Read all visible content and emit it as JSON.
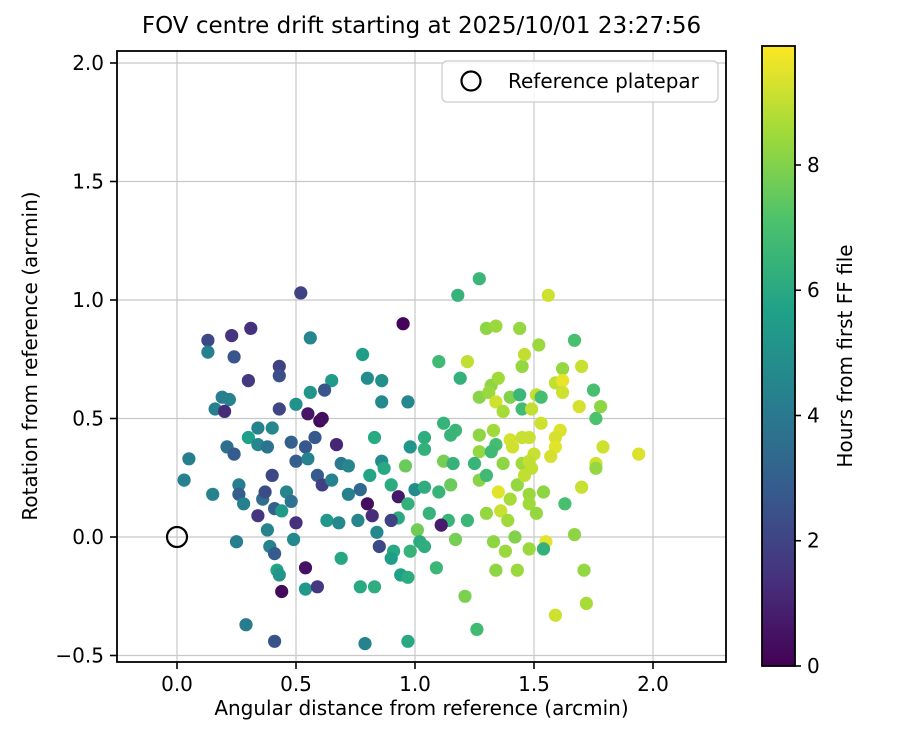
{
  "figure": {
    "title": "FOV centre drift starting at 2025/10/01 23:27:56",
    "background_color": "#ffffff",
    "grid_color": "#c8c8c8",
    "spine_color": "#000000"
  },
  "legend": {
    "label": "Reference platepar",
    "marker": "open-circle",
    "position": "upper right"
  },
  "chart_data": {
    "type": "scatter",
    "title": "FOV centre drift starting at 2025/10/01 23:27:56",
    "xlabel": "Angular distance from reference (arcmin)",
    "ylabel": "Rotation from reference (arcmin)",
    "xlim": [
      -0.252,
      2.307
    ],
    "ylim": [
      -0.527,
      2.051
    ],
    "grid": true,
    "xticks": [
      0.0,
      0.5,
      1.0,
      1.5,
      2.0
    ],
    "xtick_labels": [
      "0.0",
      "0.5",
      "1.0",
      "1.5",
      "2.0"
    ],
    "yticks": [
      -0.5,
      0.0,
      0.5,
      1.0,
      1.5,
      2.0
    ],
    "ytick_labels": [
      "−0.5",
      "0.0",
      "0.5",
      "1.0",
      "1.5",
      "2.0"
    ],
    "colorbar": {
      "label": "Hours from first FF file",
      "ticks": [
        0,
        2,
        4,
        6,
        8
      ],
      "tick_labels": [
        "0",
        "2",
        "4",
        "6",
        "8"
      ],
      "vmin": 0,
      "vmax": 9.9,
      "colormap": "viridis"
    },
    "reference_point": {
      "x": 0.0,
      "y": 0.0,
      "label": "Reference platepar"
    },
    "points_format": [
      "x_arcmin",
      "y_arcmin",
      "hours_from_first_ff"
    ],
    "points": [
      [
        0.52,
        1.03,
        2.0
      ],
      [
        0.31,
        0.88,
        1.4
      ],
      [
        0.23,
        0.85,
        1.5
      ],
      [
        0.13,
        0.83,
        2.2
      ],
      [
        0.13,
        0.78,
        4.3
      ],
      [
        0.24,
        0.76,
        2.6
      ],
      [
        0.43,
        0.72,
        2.0
      ],
      [
        0.43,
        0.68,
        2.4
      ],
      [
        0.3,
        0.66,
        1.6
      ],
      [
        0.56,
        0.84,
        4.5
      ],
      [
        0.19,
        0.59,
        4.2
      ],
      [
        0.22,
        0.58,
        4.4
      ],
      [
        0.16,
        0.54,
        4.3
      ],
      [
        0.2,
        0.53,
        1.2
      ],
      [
        0.43,
        0.54,
        2.1
      ],
      [
        0.5,
        0.56,
        5.0
      ],
      [
        0.55,
        0.52,
        0.6
      ],
      [
        0.6,
        0.49,
        0.2
      ],
      [
        0.56,
        0.61,
        5.2
      ],
      [
        0.34,
        0.46,
        4.4
      ],
      [
        0.4,
        0.46,
        4.6
      ],
      [
        0.3,
        0.42,
        5.6
      ],
      [
        0.34,
        0.39,
        4.5
      ],
      [
        0.21,
        0.38,
        3.6
      ],
      [
        0.24,
        0.35,
        2.8
      ],
      [
        0.05,
        0.33,
        4.2
      ],
      [
        0.38,
        0.38,
        3.8
      ],
      [
        0.48,
        0.4,
        3.0
      ],
      [
        0.54,
        0.38,
        2.7
      ],
      [
        0.5,
        0.32,
        2.9
      ],
      [
        0.55,
        0.33,
        4.4
      ],
      [
        1.27,
        1.09,
        6.6
      ],
      [
        1.18,
        1.02,
        6.4
      ],
      [
        0.95,
        0.9,
        0.1
      ],
      [
        1.3,
        0.88,
        8.2
      ],
      [
        1.34,
        0.89,
        8.4
      ],
      [
        1.44,
        0.88,
        8.3
      ],
      [
        0.78,
        0.77,
        5.5
      ],
      [
        1.1,
        0.74,
        6.7
      ],
      [
        1.22,
        0.74,
        9.0
      ],
      [
        1.19,
        0.67,
        6.3
      ],
      [
        1.45,
        0.72,
        8.3
      ],
      [
        0.8,
        0.67,
        4.8
      ],
      [
        0.86,
        0.66,
        4.9
      ],
      [
        0.65,
        0.66,
        5.4
      ],
      [
        0.62,
        0.62,
        2.6
      ],
      [
        0.86,
        0.57,
        4.7
      ],
      [
        0.97,
        0.57,
        4.6
      ],
      [
        1.32,
        0.64,
        8.2
      ],
      [
        1.35,
        0.67,
        8.5
      ],
      [
        1.27,
        0.59,
        8.1
      ],
      [
        1.31,
        0.61,
        8.4
      ],
      [
        1.34,
        0.57,
        9.2
      ],
      [
        1.4,
        0.59,
        8.0
      ],
      [
        1.44,
        0.6,
        6.6
      ],
      [
        1.37,
        0.53,
        8.6
      ],
      [
        1.45,
        0.54,
        6.8
      ],
      [
        0.61,
        0.5,
        0.4
      ],
      [
        1.12,
        0.48,
        6.4
      ],
      [
        1.17,
        0.45,
        6.6
      ],
      [
        1.04,
        0.42,
        6.2
      ],
      [
        1.27,
        0.43,
        8.2
      ],
      [
        1.33,
        0.45,
        8.5
      ],
      [
        1.4,
        0.41,
        9.3
      ],
      [
        1.34,
        0.39,
        6.9
      ],
      [
        1.45,
        0.42,
        9.1
      ],
      [
        0.58,
        0.42,
        2.7
      ],
      [
        0.67,
        0.39,
        1.1
      ],
      [
        0.83,
        0.42,
        6.0
      ],
      [
        0.98,
        0.38,
        5.2
      ],
      [
        1.04,
        0.37,
        6.3
      ],
      [
        1.15,
        0.43,
        6.5
      ],
      [
        1.27,
        0.36,
        8.3
      ],
      [
        1.32,
        0.36,
        6.7
      ],
      [
        1.41,
        0.38,
        9.2
      ],
      [
        1.45,
        0.31,
        8.5
      ],
      [
        1.12,
        0.32,
        7.8
      ],
      [
        1.16,
        0.31,
        6.4
      ],
      [
        0.86,
        0.32,
        4.8
      ],
      [
        0.87,
        0.29,
        6.0
      ],
      [
        0.69,
        0.31,
        4.0
      ],
      [
        0.72,
        0.3,
        4.5
      ],
      [
        0.96,
        0.3,
        7.6
      ],
      [
        1.25,
        0.31,
        6.5
      ],
      [
        1.37,
        0.31,
        8.2
      ],
      [
        1.56,
        1.02,
        9.2
      ],
      [
        1.67,
        0.83,
        7.0
      ],
      [
        1.52,
        0.81,
        8.4
      ],
      [
        1.46,
        0.77,
        9.0
      ],
      [
        1.62,
        0.71,
        8.3
      ],
      [
        1.7,
        0.72,
        9.1
      ],
      [
        1.59,
        0.65,
        9.0
      ],
      [
        1.62,
        0.66,
        9.6
      ],
      [
        1.62,
        0.61,
        9.2
      ],
      [
        1.75,
        0.62,
        7.0
      ],
      [
        1.51,
        0.6,
        9.0
      ],
      [
        1.53,
        0.59,
        6.9
      ],
      [
        1.69,
        0.55,
        9.3
      ],
      [
        1.49,
        0.54,
        9.0
      ],
      [
        1.78,
        0.55,
        8.2
      ],
      [
        1.76,
        0.5,
        7.1
      ],
      [
        1.53,
        0.48,
        9.2
      ],
      [
        1.61,
        0.45,
        9.4
      ],
      [
        1.48,
        0.42,
        9.1
      ],
      [
        1.59,
        0.42,
        9.3
      ],
      [
        1.59,
        0.38,
        9.5
      ],
      [
        1.79,
        0.38,
        9.2
      ],
      [
        1.94,
        0.35,
        9.4
      ],
      [
        1.5,
        0.35,
        9.1
      ],
      [
        1.57,
        0.34,
        9.3
      ],
      [
        1.76,
        0.31,
        9.2
      ],
      [
        1.48,
        0.32,
        9.0
      ],
      [
        0.03,
        0.24,
        4.3
      ],
      [
        0.15,
        0.18,
        4.4
      ],
      [
        0.26,
        0.22,
        4.2
      ],
      [
        0.4,
        0.26,
        2.2
      ],
      [
        0.26,
        0.18,
        2.9
      ],
      [
        0.28,
        0.14,
        4.3
      ],
      [
        0.36,
        0.16,
        3.5
      ],
      [
        0.37,
        0.19,
        2.3
      ],
      [
        0.41,
        0.12,
        3.0
      ],
      [
        0.44,
        0.11,
        5.4
      ],
      [
        0.46,
        0.19,
        4.5
      ],
      [
        0.48,
        0.15,
        3.7
      ],
      [
        0.34,
        0.09,
        1.5
      ],
      [
        0.5,
        0.06,
        1.4
      ],
      [
        0.38,
        0.03,
        4.4
      ],
      [
        0.49,
        -0.01,
        4.6
      ],
      [
        0.25,
        -0.02,
        4.2
      ],
      [
        0.39,
        -0.04,
        4.4
      ],
      [
        0.41,
        -0.07,
        2.8
      ],
      [
        0.42,
        -0.14,
        5.8
      ],
      [
        0.43,
        -0.16,
        5.1
      ],
      [
        0.44,
        -0.23,
        0.3
      ],
      [
        0.54,
        -0.13,
        0.5
      ],
      [
        0.54,
        -0.22,
        5.3
      ],
      [
        0.29,
        -0.37,
        4.1
      ],
      [
        0.41,
        -0.44,
        2.5
      ],
      [
        0.59,
        0.26,
        2.8
      ],
      [
        0.61,
        0.22,
        1.9
      ],
      [
        0.65,
        0.24,
        4.4
      ],
      [
        0.72,
        0.18,
        4.3
      ],
      [
        0.77,
        0.2,
        3.3
      ],
      [
        0.8,
        0.14,
        0.4
      ],
      [
        0.82,
        0.09,
        1.3
      ],
      [
        0.76,
        0.07,
        4.5
      ],
      [
        0.93,
        0.17,
        0.7
      ],
      [
        0.9,
        0.22,
        6.1
      ],
      [
        0.84,
        0.02,
        4.6
      ],
      [
        1.0,
        0.2,
        4.8
      ],
      [
        1.04,
        0.21,
        6.2
      ],
      [
        0.93,
        0.08,
        6.0
      ],
      [
        0.97,
        0.14,
        6.3
      ],
      [
        1.14,
        0.07,
        6.5
      ],
      [
        1.01,
        0.03,
        7.7
      ],
      [
        1.02,
        -0.02,
        6.1
      ],
      [
        0.98,
        -0.06,
        6.4
      ],
      [
        1.04,
        -0.04,
        6.2
      ],
      [
        0.91,
        -0.06,
        6.0
      ],
      [
        0.9,
        -0.09,
        5.5
      ],
      [
        0.69,
        -0.09,
        5.9
      ],
      [
        0.59,
        -0.21,
        1.6
      ],
      [
        0.77,
        -0.21,
        6.0
      ],
      [
        0.83,
        -0.21,
        6.2
      ],
      [
        0.94,
        -0.16,
        5.6
      ],
      [
        0.97,
        -0.17,
        6.1
      ],
      [
        1.09,
        -0.13,
        6.6
      ],
      [
        1.21,
        -0.25,
        7.9
      ],
      [
        1.26,
        -0.39,
        6.8
      ],
      [
        0.79,
        -0.45,
        4.4
      ],
      [
        0.97,
        -0.44,
        6.0
      ],
      [
        1.34,
        -0.14,
        8.2
      ],
      [
        1.43,
        -0.14,
        8.4
      ],
      [
        1.3,
        0.1,
        8.3
      ],
      [
        1.36,
        0.11,
        9.1
      ],
      [
        1.39,
        0.07,
        8.5
      ],
      [
        1.33,
        -0.02,
        8.2
      ],
      [
        1.38,
        -0.06,
        8.4
      ],
      [
        1.35,
        0.19,
        9.5
      ],
      [
        1.4,
        0.16,
        8.6
      ],
      [
        1.43,
        0.22,
        8.3
      ],
      [
        1.46,
        0.26,
        9.0
      ],
      [
        1.27,
        0.24,
        8.1
      ],
      [
        1.3,
        0.26,
        6.7
      ],
      [
        1.76,
        0.29,
        8.3
      ],
      [
        1.49,
        0.29,
        9.0
      ],
      [
        1.48,
        0.18,
        8.4
      ],
      [
        1.54,
        0.19,
        8.2
      ],
      [
        1.7,
        0.21,
        9.1
      ],
      [
        1.63,
        0.14,
        7.0
      ],
      [
        1.48,
        0.14,
        8.5
      ],
      [
        1.51,
        0.1,
        8.3
      ],
      [
        1.67,
        0.01,
        8.2
      ],
      [
        1.55,
        -0.02,
        9.5
      ],
      [
        1.54,
        -0.05,
        6.3
      ],
      [
        1.48,
        -0.05,
        8.4
      ],
      [
        1.42,
        0.0,
        8.0
      ],
      [
        1.71,
        -0.14,
        8.3
      ],
      [
        1.72,
        -0.28,
        8.6
      ],
      [
        1.59,
        -0.33,
        9.2
      ],
      [
        0.81,
        0.26,
        5.8
      ],
      [
        1.1,
        0.19,
        6.5
      ],
      [
        1.15,
        0.22,
        7.6
      ],
      [
        0.63,
        0.07,
        5.3
      ],
      [
        0.68,
        0.06,
        4.6
      ],
      [
        0.9,
        0.07,
        2.0
      ],
      [
        1.06,
        0.1,
        6.4
      ],
      [
        1.11,
        0.05,
        0.8
      ],
      [
        1.22,
        0.07,
        6.6
      ],
      [
        1.17,
        -0.01,
        7.8
      ],
      [
        0.85,
        -0.04,
        2.2
      ]
    ]
  }
}
